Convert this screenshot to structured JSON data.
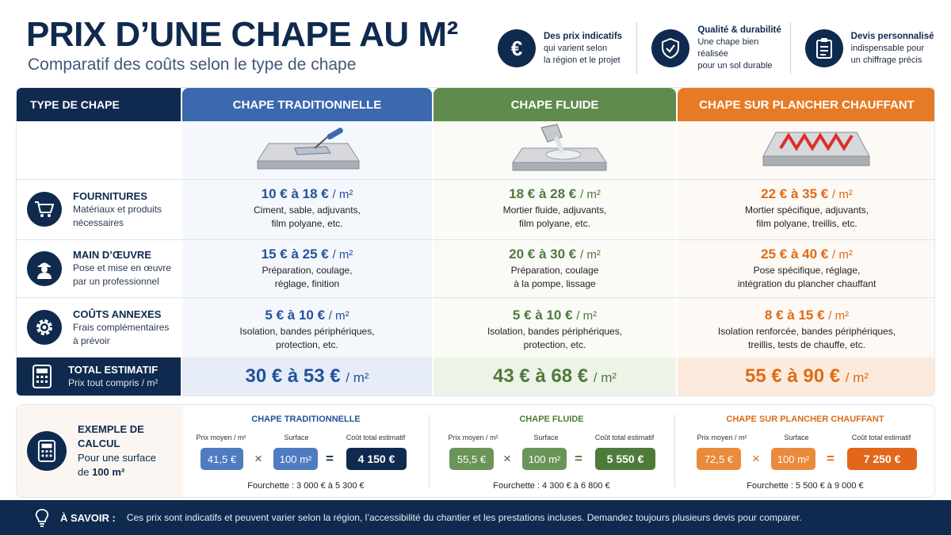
{
  "title": "PRIX D’UNE CHAPE AU M²",
  "subtitle": "Comparatif des coûts selon le type de chape",
  "features": [
    {
      "icon": "euro-icon",
      "title": "Des prix indicatifs",
      "text1": "qui varient selon",
      "text2": "la région et le projet"
    },
    {
      "icon": "shield-check-icon",
      "title": "Qualité & durabilité",
      "text1": "Une chape bien réalisée",
      "text2": "pour un sol durable"
    },
    {
      "icon": "clipboard-icon",
      "title": "Devis personnalisé",
      "text1": "indispensable pour",
      "text2": "un chiffrage précis"
    }
  ],
  "table": {
    "label_header": "TYPE DE CHAPE",
    "columns": [
      "CHAPE TRADITIONNELLE",
      "CHAPE FLUIDE",
      "CHAPE SUR PLANCHER CHAUFFANT"
    ],
    "unit": "/ m²",
    "rows": [
      {
        "icon": "cart-icon",
        "title": "FOURNITURES",
        "desc1": "Matériaux et produits",
        "desc2": "nécessaires",
        "cells": [
          {
            "price": "10 € à 18 €",
            "l1": "Ciment, sable, adjuvants,",
            "l2": "film polyane, etc."
          },
          {
            "price": "18 € à 28 €",
            "l1": "Mortier fluide, adjuvants,",
            "l2": "film polyane, etc."
          },
          {
            "price": "22 € à 35 €",
            "l1": "Mortier spécifique, adjuvants,",
            "l2": "film polyane, treillis, etc."
          }
        ]
      },
      {
        "icon": "worker-icon",
        "title": "MAIN D’ŒUVRE",
        "desc1": "Pose et mise en œuvre",
        "desc2": "par un professionnel",
        "cells": [
          {
            "price": "15 € à 25 €",
            "l1": "Préparation, coulage,",
            "l2": "réglage, finition"
          },
          {
            "price": "20 € à 30 €",
            "l1": "Préparation, coulage",
            "l2": "à la pompe, lissage"
          },
          {
            "price": "25 € à 40 €",
            "l1": "Pose spécifique, réglage,",
            "l2": "intégration du plancher chauffant"
          }
        ]
      },
      {
        "icon": "gear-icon",
        "title": "COÛTS ANNEXES",
        "desc1": "Frais complémentaires",
        "desc2": "à prévoir",
        "cells": [
          {
            "price": "5 € à 10 €",
            "l1": "Isolation, bandes périphériques,",
            "l2": "protection, etc."
          },
          {
            "price": "5 € à 10 €",
            "l1": "Isolation, bandes périphériques,",
            "l2": "protection, etc."
          },
          {
            "price": "8 € à 15 €",
            "l1": "Isolation renforcée, bandes périphériques,",
            "l2": "treillis, tests de chauffe, etc."
          }
        ]
      }
    ],
    "total": {
      "icon": "calculator-icon",
      "title": "TOTAL ESTIMATIF",
      "desc": "Prix tout compris / m²",
      "values": [
        "30 € à 53 €",
        "43 € à 68 €",
        "55 € à 90 €"
      ]
    }
  },
  "example": {
    "title": "EXEMPLE DE CALCUL",
    "desc1": "Pour une surface",
    "desc2a": "de ",
    "desc2b": "100 m²",
    "h_price": "Prix moyen / m²",
    "h_surface": "Surface",
    "h_total": "Coût total estimatif",
    "times": "×",
    "equals": "=",
    "blocks": [
      {
        "title": "CHAPE TRADITIONNELLE",
        "price": "41,5 €",
        "surface": "100 m²",
        "total": "4 150 €",
        "range": "Fourchette : 3 000 € à 5 300 €"
      },
      {
        "title": "CHAPE FLUIDE",
        "price": "55,5 €",
        "surface": "100 m²",
        "total": "5 550 €",
        "range": "Fourchette : 4 300 € à 6 800 €"
      },
      {
        "title": "CHAPE SUR PLANCHER CHAUFFANT",
        "price": "72,5 €",
        "surface": "100 m²",
        "total": "7 250 €",
        "range": "Fourchette : 5 500 € à 9 000 €"
      }
    ]
  },
  "info": {
    "icon": "lightbulb-icon",
    "label": "À SAVOIR  :",
    "text": "Ces prix sont indicatifs et peuvent varier selon la région, l’accessibilité du chantier et les prestations incluses. Demandez toujours plusieurs devis pour comparer."
  },
  "colors": {
    "navy": "#0f2a4e",
    "blue": "#3c68ad",
    "green": "#5f8b4d",
    "orange": "#e77b25"
  }
}
